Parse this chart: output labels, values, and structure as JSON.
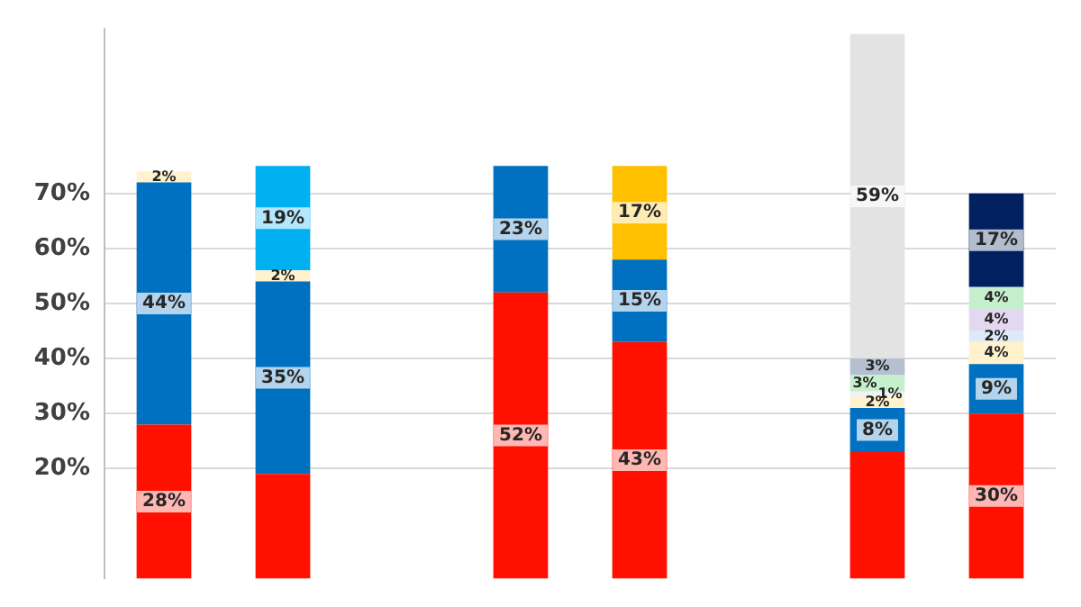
{
  "chart_data": {
    "type": "bar",
    "stacked": true,
    "categories": [
      null,
      null,
      null,
      null,
      null,
      null,
      null,
      null
    ],
    "ylim": [
      0,
      100
    ],
    "yticks": [
      {
        "value": 20,
        "label": "20%"
      },
      {
        "value": 30,
        "label": "30%"
      },
      {
        "value": 40,
        "label": "40%"
      },
      {
        "value": 50,
        "label": "50%"
      },
      {
        "value": 60,
        "label": "60%"
      },
      {
        "value": 70,
        "label": "70%"
      }
    ],
    "grid": "y",
    "legend": false,
    "tick_labels": "y",
    "series": [
      {
        "color": "#ff1000",
        "values": [
          28,
          19,
          null,
          52,
          43,
          null,
          23,
          30
        ],
        "value_labels": [
          "28%",
          null,
          null,
          "52%",
          "43%",
          null,
          null,
          "30%"
        ]
      },
      {
        "color": "#0070c0",
        "values": [
          44,
          35,
          null,
          23,
          15,
          null,
          8,
          9
        ],
        "value_labels": [
          "44%",
          "35%",
          null,
          "23%",
          "15%",
          null,
          "8%",
          "9%"
        ]
      },
      {
        "color": "#fff2cc",
        "values": [
          2,
          2,
          null,
          null,
          null,
          null,
          2,
          4
        ],
        "value_labels": [
          "2%",
          "2%",
          null,
          null,
          null,
          null,
          "2%",
          "4%"
        ]
      },
      {
        "color": "#00b0f0",
        "values": [
          null,
          19,
          null,
          null,
          null,
          null,
          null,
          null
        ],
        "value_labels": [
          null,
          "19%",
          null,
          null,
          null,
          null,
          null,
          null
        ]
      },
      {
        "color": "#ffc000",
        "values": [
          null,
          null,
          null,
          null,
          17,
          null,
          null,
          null
        ],
        "value_labels": [
          null,
          null,
          null,
          null,
          "17%",
          null,
          null,
          null
        ]
      },
      {
        "color": "#ddebf7",
        "values": [
          null,
          null,
          null,
          null,
          null,
          null,
          null,
          2
        ],
        "value_labels": [
          null,
          null,
          null,
          null,
          null,
          null,
          null,
          "2%"
        ]
      },
      {
        "color": "#f2f2f2",
        "values": [
          null,
          null,
          null,
          null,
          null,
          null,
          1,
          null
        ],
        "value_labels": [
          null,
          null,
          null,
          null,
          null,
          null,
          "1%",
          null
        ]
      },
      {
        "color": "#e4d7f0",
        "values": [
          null,
          null,
          null,
          null,
          null,
          null,
          null,
          4
        ],
        "value_labels": [
          null,
          null,
          null,
          null,
          null,
          null,
          null,
          "4%"
        ]
      },
      {
        "color": "#c6efce",
        "values": [
          null,
          null,
          null,
          null,
          null,
          null,
          3,
          4
        ],
        "value_labels": [
          null,
          null,
          null,
          null,
          null,
          null,
          "3%",
          "4%"
        ]
      },
      {
        "color": "#b4bfd0",
        "values": [
          null,
          null,
          null,
          null,
          null,
          null,
          3,
          null
        ],
        "value_labels": [
          null,
          null,
          null,
          null,
          null,
          null,
          "3%",
          null
        ]
      },
      {
        "color": "#002060",
        "values": [
          null,
          null,
          null,
          null,
          null,
          null,
          null,
          17
        ],
        "value_labels": [
          null,
          null,
          null,
          null,
          null,
          null,
          null,
          "17%"
        ]
      },
      {
        "color": "#e3e3e3",
        "values": [
          null,
          null,
          null,
          null,
          null,
          null,
          59,
          null
        ],
        "value_labels": [
          null,
          null,
          null,
          null,
          null,
          null,
          "59%",
          null
        ]
      }
    ]
  }
}
